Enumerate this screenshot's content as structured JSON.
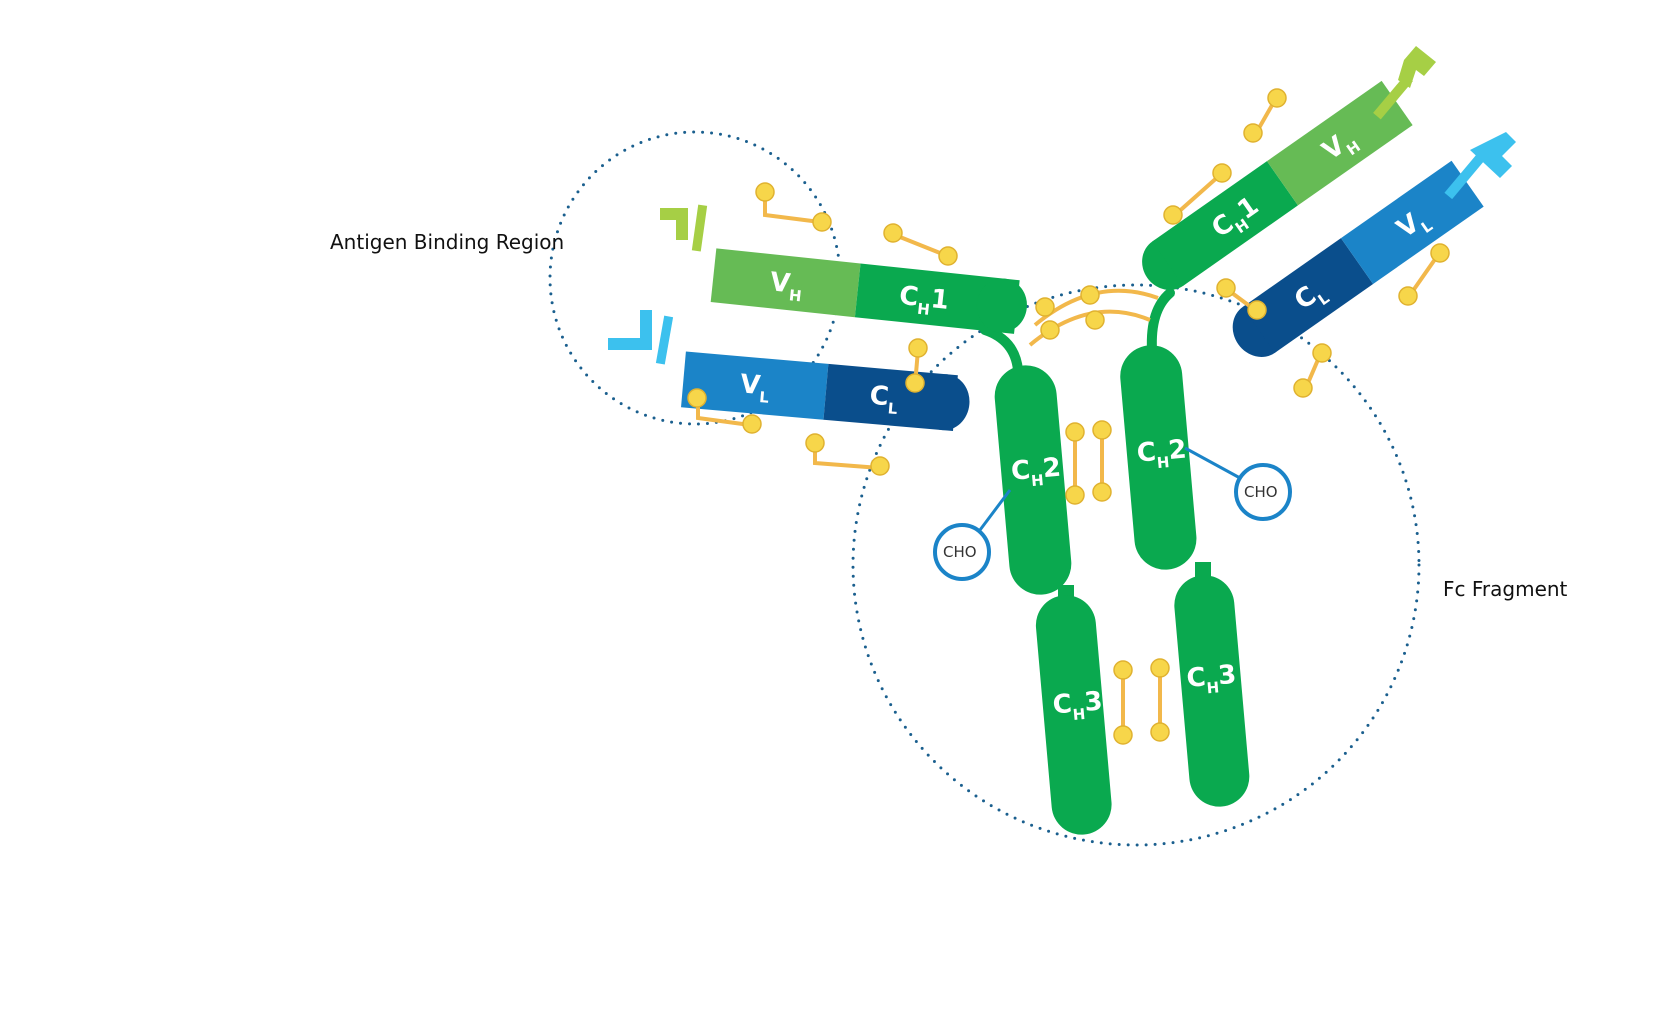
{
  "labels": {
    "antigen_binding_region": "Antigen Binding Region",
    "fc_fragment": "Fc Fragment"
  },
  "domains": {
    "vh": {
      "main": "V",
      "sub": "H"
    },
    "vl": {
      "main": "V",
      "sub": "L"
    },
    "cl": {
      "main": "C",
      "sub": "L"
    },
    "ch1": {
      "main": "C",
      "sub": "H",
      "num": "1"
    },
    "ch2": {
      "main": "C",
      "sub": "H",
      "num": "2"
    },
    "ch3": {
      "main": "C",
      "sub": "H",
      "num": "3"
    }
  },
  "cho": "CHO",
  "colors": {
    "heavy_constant": "#0aa94f",
    "heavy_variable": "#66bb55",
    "light_variable": "#1b84c8",
    "light_constant": "#0a4e8c",
    "antigen_tip_heavy": "#a6cf45",
    "antigen_tip_light": "#3cc1ee",
    "disulfide": "#f2b84b",
    "region_outline": "#1a5f8e"
  }
}
